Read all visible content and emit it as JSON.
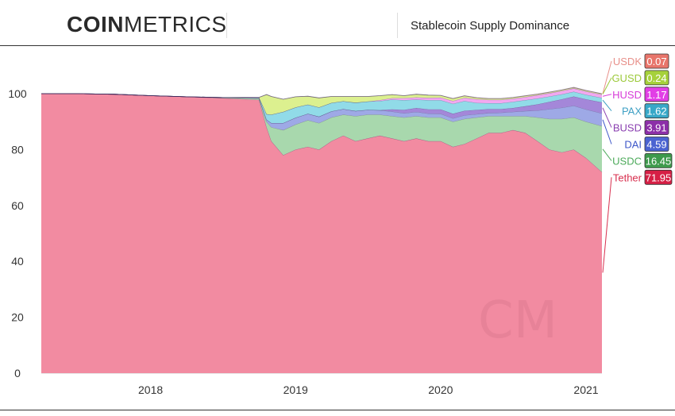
{
  "header": {
    "logo_bold": "COIN",
    "logo_light": "METRICS",
    "chart_title": "Stablecoin Supply Dominance"
  },
  "watermark": "CM",
  "chart_data": {
    "type": "area",
    "stacked": true,
    "title": "Stablecoin Supply Dominance",
    "xlabel": "",
    "ylabel": "",
    "ylim": [
      0,
      100
    ],
    "y_ticks": [
      0,
      20,
      40,
      60,
      80,
      100
    ],
    "xlim": [
      "2017-04-01",
      "2021-02-10"
    ],
    "x_ticks": [
      "2018",
      "2019",
      "2020",
      "2021"
    ],
    "grid": false,
    "legend": "right",
    "x": [
      "2017-04-01",
      "2017-07-01",
      "2017-10-01",
      "2018-01-01",
      "2018-04-01",
      "2018-07-01",
      "2018-10-01",
      "2018-10-20",
      "2018-11-01",
      "2018-12-01",
      "2019-01-01",
      "2019-02-01",
      "2019-03-01",
      "2019-04-01",
      "2019-05-01",
      "2019-06-01",
      "2019-07-01",
      "2019-08-01",
      "2019-09-01",
      "2019-10-01",
      "2019-11-01",
      "2019-12-01",
      "2020-01-01",
      "2020-02-01",
      "2020-03-01",
      "2020-04-01",
      "2020-05-01",
      "2020-06-01",
      "2020-07-01",
      "2020-08-01",
      "2020-09-01",
      "2020-10-01",
      "2020-11-01",
      "2020-12-01",
      "2021-01-01",
      "2021-02-10"
    ],
    "series": [
      {
        "name": "Tether",
        "color": "#f28ba1",
        "values": [
          100,
          100,
          99.8,
          99.3,
          98.9,
          98.4,
          97.8,
          88,
          83,
          78,
          80,
          81,
          80,
          83,
          85,
          83,
          84,
          85,
          84,
          83,
          84,
          83,
          83,
          81,
          82,
          84,
          86,
          86,
          87,
          86,
          83,
          80,
          79,
          80,
          77,
          71.95
        ]
      },
      {
        "name": "USDC",
        "color": "#a8d8ad",
        "values": [
          0,
          0,
          0,
          0,
          0,
          0.2,
          0.5,
          2,
          5,
          9,
          9,
          9.5,
          9.5,
          8.5,
          7.5,
          9,
          8.5,
          7.5,
          8,
          8.5,
          8,
          8.5,
          8.5,
          9,
          9,
          7.5,
          6,
          6,
          5,
          6,
          8.5,
          11,
          12,
          11.5,
          13,
          16.45
        ]
      },
      {
        "name": "DAI",
        "color": "#9ea9e6",
        "values": [
          0,
          0,
          0,
          0,
          0,
          0,
          0.2,
          0.7,
          1.5,
          2.5,
          2.4,
          2.3,
          2.3,
          2.2,
          2,
          1.8,
          1.7,
          1.6,
          1.6,
          1.5,
          1.5,
          1.4,
          1.3,
          1.2,
          1.3,
          1.2,
          1.1,
          1.2,
          1.5,
          1.8,
          2.5,
          3.5,
          4,
          4.2,
          4.4,
          4.59
        ]
      },
      {
        "name": "BUSD",
        "color": "#a487d9",
        "values": [
          0,
          0,
          0,
          0,
          0,
          0,
          0,
          0,
          0,
          0,
          0,
          0,
          0,
          0,
          0,
          0,
          0,
          0,
          0.8,
          1.2,
          1.4,
          1.5,
          1.6,
          1.6,
          1.6,
          1.5,
          1.4,
          1.3,
          1.4,
          1.7,
          2.2,
          2.6,
          3,
          3.3,
          3.6,
          3.91
        ]
      },
      {
        "name": "PAX",
        "color": "#91dbe8",
        "values": [
          0,
          0,
          0,
          0,
          0,
          0,
          0.1,
          2,
          3,
          4,
          3.7,
          3.3,
          3.3,
          3,
          2.8,
          3,
          3,
          3.3,
          3.5,
          3.5,
          3,
          3.3,
          3.3,
          3.6,
          3.5,
          2.5,
          2.1,
          2.1,
          2.2,
          2.2,
          2.1,
          1.9,
          1.8,
          1.7,
          1.6,
          1.62
        ]
      },
      {
        "name": "HUSD",
        "color": "#f2a8f0",
        "values": [
          0,
          0,
          0,
          0,
          0,
          0,
          0,
          0,
          0,
          0,
          0,
          0,
          0,
          0,
          0,
          0,
          0,
          0.3,
          0.5,
          0.7,
          0.8,
          0.8,
          0.9,
          1,
          1.1,
          1.3,
          1.2,
          1.2,
          1.1,
          1.1,
          1.2,
          1.2,
          1.2,
          1.2,
          1.2,
          1.17
        ]
      },
      {
        "name": "GUSD",
        "color": "#dcf08f",
        "values": [
          0,
          0,
          0,
          0,
          0,
          0,
          0.1,
          7,
          6.5,
          4.5,
          3.8,
          3,
          3.4,
          2.3,
          1.7,
          2.2,
          1.8,
          1.6,
          1.3,
          0.9,
          1.1,
          1,
          0.8,
          0.8,
          0.7,
          0.5,
          0.4,
          0.4,
          0.4,
          0.4,
          0.3,
          0.3,
          0.3,
          0.3,
          0.3,
          0.24
        ]
      },
      {
        "name": "USDK",
        "color": "#f2b3a3",
        "values": [
          0,
          0,
          0,
          0,
          0,
          0,
          0,
          0,
          0,
          0,
          0,
          0,
          0,
          0,
          0,
          0,
          0,
          0,
          0,
          0,
          0,
          0,
          0,
          0.1,
          0.1,
          0.1,
          0.1,
          0.1,
          0.1,
          0.1,
          0.1,
          0.1,
          0.1,
          0.1,
          0.1,
          0.07
        ]
      }
    ],
    "legend_entries": [
      {
        "name": "USDK",
        "value": "0.07",
        "name_color": "#e8908a",
        "badge_color": "#e8756b"
      },
      {
        "name": "GUSD",
        "value": "0.24",
        "name_color": "#9cc93a",
        "badge_color": "#a6d13b"
      },
      {
        "name": "HUSD",
        "value": "1.17",
        "name_color": "#d73bd8",
        "badge_color": "#e23ee6"
      },
      {
        "name": "PAX",
        "value": "1.62",
        "name_color": "#3fa0c4",
        "badge_color": "#38a8c8"
      },
      {
        "name": "BUSD",
        "value": "3.91",
        "name_color": "#8a3fb0",
        "badge_color": "#8c2fa8"
      },
      {
        "name": "DAI",
        "value": "4.59",
        "name_color": "#3d57c9",
        "badge_color": "#4a63d1"
      },
      {
        "name": "USDC",
        "value": "16.45",
        "name_color": "#4caa5a",
        "badge_color": "#3e9a4c"
      },
      {
        "name": "Tether",
        "value": "71.95",
        "name_color": "#d8304f",
        "badge_color": "#d61f45"
      }
    ]
  }
}
